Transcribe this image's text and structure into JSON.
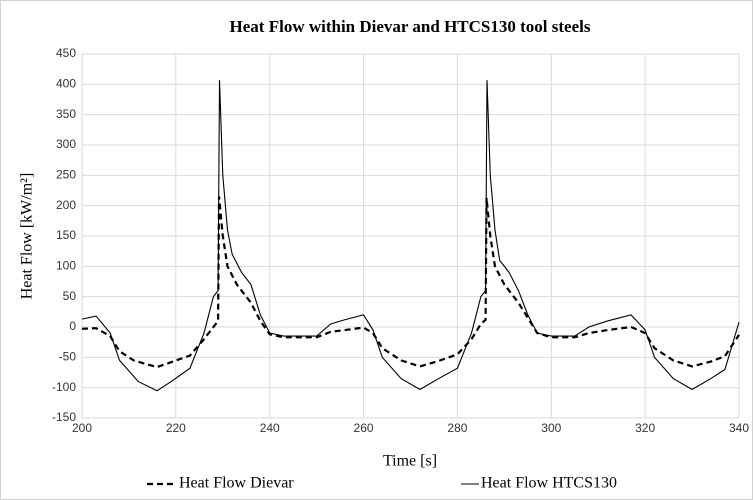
{
  "chart_data": {
    "type": "line",
    "title": "Heat Flow within Dievar and HTCS130 tool steels",
    "xlabel": "Time [s]",
    "ylabel": "Heat Flow [kW/m²]",
    "xlim": [
      200,
      340
    ],
    "xticks": [
      200,
      220,
      240,
      260,
      280,
      300,
      320,
      340
    ],
    "ylim": [
      -150,
      450
    ],
    "yticks": [
      -150,
      -100,
      -50,
      0,
      50,
      100,
      150,
      200,
      250,
      300,
      350,
      400,
      450
    ],
    "grid": true,
    "legend": "bottom",
    "series": [
      {
        "name": "Heat Flow Dievar",
        "color": "#000000",
        "dash": true,
        "x": [
          200,
          203,
          206,
          208,
          211,
          214,
          216,
          219,
          223,
          226,
          228,
          229,
          229.2,
          230,
          231,
          233,
          236,
          238,
          240,
          243,
          250,
          253,
          256,
          260,
          262,
          264,
          268,
          272,
          276,
          280,
          283,
          285,
          286,
          286.2,
          287,
          288,
          290,
          293,
          295,
          297,
          300,
          305,
          308,
          312,
          317,
          320,
          322,
          326,
          330,
          334,
          337,
          340
        ],
        "y": [
          -3,
          -2,
          -15,
          -40,
          -55,
          -62,
          -66,
          -58,
          -47,
          -20,
          0,
          10,
          215,
          150,
          100,
          70,
          40,
          10,
          -12,
          -17,
          -17,
          -8,
          -5,
          -1,
          -10,
          -35,
          -55,
          -65,
          -56,
          -45,
          -20,
          5,
          12,
          213,
          150,
          100,
          70,
          40,
          15,
          -10,
          -17,
          -17,
          -10,
          -5,
          0,
          -10,
          -35,
          -55,
          -65,
          -57,
          -48,
          -13
        ]
      },
      {
        "name": "Heat Flow HTCS130",
        "color": "#000000",
        "dash": false,
        "x": [
          200,
          203,
          206,
          208,
          212,
          216,
          219,
          223,
          226,
          228,
          229,
          229.3,
          230,
          231,
          232,
          234,
          236,
          238,
          240,
          243,
          250,
          253,
          256,
          260,
          262,
          264,
          268,
          272,
          276,
          280,
          283,
          285,
          286,
          286.3,
          287,
          288,
          289,
          291,
          293,
          295,
          297,
          300,
          305,
          308,
          312,
          317,
          320,
          322,
          326,
          330,
          334,
          337,
          340
        ],
        "y": [
          13,
          18,
          -10,
          -55,
          -90,
          -105,
          -90,
          -68,
          -10,
          50,
          60,
          407,
          250,
          160,
          120,
          90,
          70,
          20,
          -10,
          -15,
          -15,
          5,
          12,
          20,
          -5,
          -50,
          -85,
          -103,
          -85,
          -68,
          -10,
          50,
          60,
          407,
          250,
          160,
          110,
          90,
          60,
          20,
          -10,
          -15,
          -15,
          0,
          10,
          20,
          -5,
          -50,
          -85,
          -103,
          -85,
          -70,
          8
        ]
      }
    ]
  }
}
